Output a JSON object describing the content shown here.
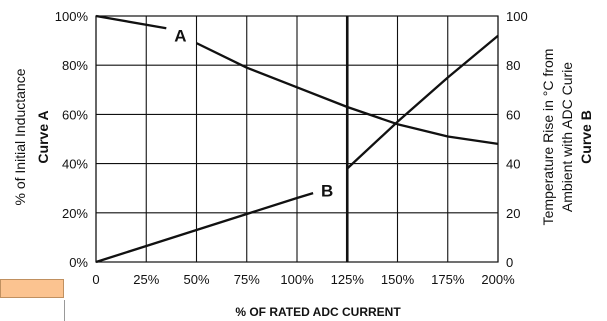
{
  "chart_data": {
    "type": "line",
    "xlabel": "% OF RATED ADC CURRENT",
    "x_ticks": [
      "0",
      "25%",
      "50%",
      "75%",
      "100%",
      "125%",
      "150%",
      "175%",
      "200%"
    ],
    "xlim": [
      0,
      200
    ],
    "left_axis": {
      "label_line1": "% of Initial Inductance",
      "label_line2": "Curve A",
      "ticks": [
        "0%",
        "20%",
        "40%",
        "60%",
        "80%",
        "100%"
      ],
      "ylim": [
        0,
        100
      ]
    },
    "right_axis": {
      "label_line1": "Temperature Rise in °C from",
      "label_line2": "Ambient with ADC Curie",
      "label_line3": "Curve B",
      "ticks": [
        "0",
        "20",
        "40",
        "60",
        "80",
        "100"
      ],
      "ylim": [
        0,
        100
      ]
    },
    "grid": true,
    "highlight_x": 125,
    "series": [
      {
        "name": "A",
        "axis": "left",
        "x": [
          0,
          35,
          50,
          75,
          100,
          125,
          150,
          175,
          200
        ],
        "y": [
          100,
          95,
          89,
          79,
          71,
          63,
          56,
          51,
          48
        ],
        "gap": [
          35,
          50
        ]
      },
      {
        "name": "B",
        "axis": "right",
        "x": [
          0,
          25,
          50,
          75,
          100,
          108,
          125,
          150,
          175,
          200
        ],
        "y": [
          0,
          6.5,
          13,
          19.5,
          26,
          28,
          38,
          57,
          75,
          92
        ],
        "gap": [
          108,
          125
        ]
      }
    ],
    "label_positions": {
      "A": [
        42,
        92
      ],
      "B": [
        115,
        29
      ]
    },
    "line_color": "#111111",
    "swatch_color": "#FBC390"
  }
}
